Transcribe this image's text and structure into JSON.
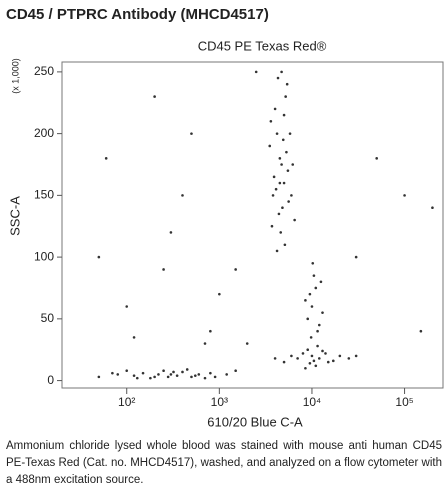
{
  "header": {
    "title": "CD45 / PTPRC Antibody (MHCD4517)"
  },
  "chart_data": {
    "type": "scatter",
    "title": "CD45 PE Texas Red®",
    "x_label": "610/20 Blue C-A",
    "y_label": "SSC-A",
    "y_unit_note": "(x 1,000)",
    "x_scale": "log",
    "color": "#333333",
    "xlim": [
      20,
      260000
    ],
    "ylim": [
      -6,
      258
    ],
    "xticks": [
      {
        "value": 100,
        "label": "10²"
      },
      {
        "value": 1000,
        "label": "10³"
      },
      {
        "value": 10000,
        "label": "10⁴"
      },
      {
        "value": 100000,
        "label": "10⁵"
      }
    ],
    "yticks": [
      0,
      50,
      100,
      150,
      200,
      250
    ],
    "x": [
      4500,
      5000,
      4200,
      3800,
      5500,
      4800,
      4000,
      5200,
      4600,
      3500,
      6000,
      4300,
      5100,
      4700,
      3900,
      5800,
      4400,
      5300,
      4100,
      6500,
      3600,
      4900,
      5600,
      4200,
      4700,
      5000,
      3700,
      6200,
      4500,
      5400,
      10000,
      11000,
      9000,
      12000,
      10500,
      9500,
      13000,
      11500,
      10200,
      8500,
      12500,
      9800,
      10000,
      12000,
      8000,
      15000,
      9000,
      11000,
      20000,
      7000,
      13000,
      10500,
      6000,
      25000,
      9500,
      14000,
      5000,
      11500,
      8500,
      17000,
      30000,
      4000,
      50,
      80,
      120,
      150,
      200,
      250,
      300,
      350,
      400,
      500,
      600,
      700,
      800,
      100,
      180,
      220,
      280,
      450,
      550,
      900,
      1200,
      70,
      130,
      320,
      1500,
      100,
      300,
      200,
      800,
      1500,
      60,
      500,
      2000,
      50,
      400,
      1000,
      30000,
      50000,
      100000,
      200000,
      150000,
      700,
      250,
      2500,
      120
    ],
    "y": [
      180,
      160,
      200,
      150,
      170,
      140,
      220,
      230,
      120,
      190,
      150,
      245,
      110,
      175,
      165,
      200,
      135,
      185,
      155,
      130,
      210,
      195,
      145,
      105,
      250,
      215,
      125,
      175,
      160,
      240,
      60,
      75,
      50,
      45,
      85,
      70,
      55,
      40,
      95,
      65,
      80,
      35,
      20,
      18,
      22,
      15,
      25,
      12,
      20,
      18,
      24,
      16,
      20,
      18,
      14,
      22,
      15,
      28,
      10,
      16,
      20,
      18,
      3,
      5,
      4,
      6,
      3,
      8,
      5,
      4,
      7,
      3,
      5,
      2,
      6,
      8,
      2,
      5,
      3,
      9,
      4,
      3,
      5,
      6,
      2,
      7,
      8,
      60,
      120,
      230,
      40,
      90,
      180,
      200,
      30,
      100,
      150,
      70,
      100,
      180,
      150,
      140,
      40,
      30,
      90,
      250,
      35
    ]
  },
  "caption": "Ammonium chloride lysed whole blood was stained with mouse anti human CD45 PE-Texas Red (Cat. no. MHCD4517), washed, and analyzed on a flow cytometer with a 488nm excitation source."
}
